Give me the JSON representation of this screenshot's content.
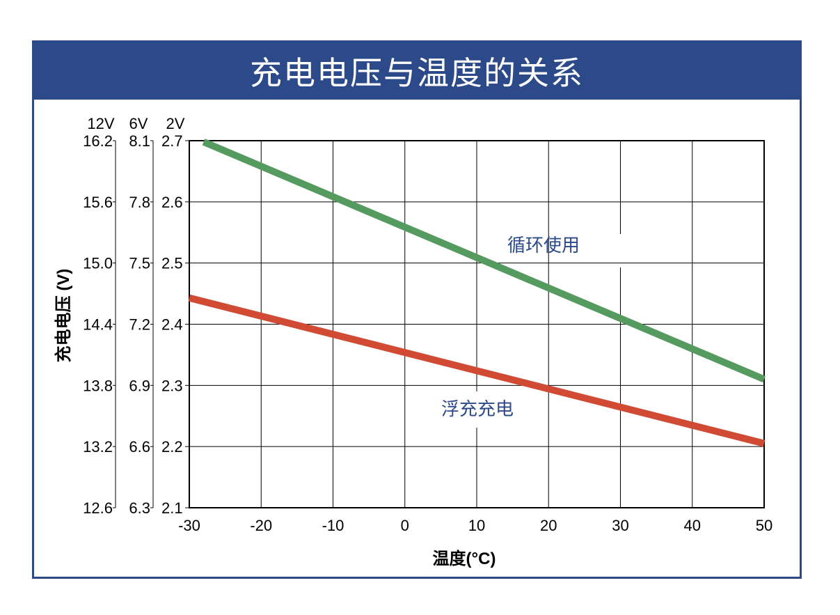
{
  "title": "充电电压与温度的关系",
  "colors": {
    "brand": "#2c4a8a",
    "green": "#559a5e",
    "red": "#d04a34",
    "label": "#2c4a8a"
  },
  "chart_data": {
    "type": "line",
    "title": "充电电压与温度的关系",
    "xlabel": "温度(°C)",
    "ylabel": "充电电压 (V)",
    "xlim": [
      -30,
      50
    ],
    "ylim": [
      2.1,
      2.7
    ],
    "x_ticks": [
      "-30",
      "-20",
      "-10",
      "0",
      "10",
      "20",
      "30",
      "40",
      "50"
    ],
    "y_axes": [
      {
        "header": "12V",
        "ticks": [
          "16.2",
          "15.6",
          "15.0",
          "14.4",
          "13.8",
          "13.2",
          "12.6"
        ]
      },
      {
        "header": "6V",
        "ticks": [
          "8.1",
          "7.8",
          "7.5",
          "7.2",
          "6.9",
          "6.6",
          "6.3"
        ]
      },
      {
        "header": "2V",
        "ticks": [
          "2.7",
          "2.6",
          "2.5",
          "2.4",
          "2.3",
          "2.2",
          "2.1"
        ]
      }
    ],
    "grid": true,
    "series": [
      {
        "name": "循环使用",
        "color": "#559a5e",
        "x": [
          -28,
          50
        ],
        "y": [
          2.698,
          2.31
        ]
      },
      {
        "name": "浮充充电",
        "color": "#d04a34",
        "x": [
          -30,
          50
        ],
        "y": [
          2.443,
          2.205
        ]
      }
    ]
  }
}
